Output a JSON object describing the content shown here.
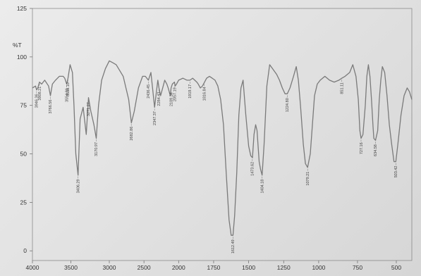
{
  "chart_data": {
    "type": "line",
    "title": "",
    "xlabel": "",
    "ylabel": "%T",
    "xlim": [
      4000,
      400
    ],
    "ylim": [
      -5,
      125
    ],
    "x_ticks": [
      "4000",
      "3500",
      "3000",
      "2500",
      "2000",
      "1750",
      "1500",
      "1250",
      "1000",
      "750",
      "500"
    ],
    "y_ticks": [
      "125",
      "100",
      "75",
      "50",
      "25",
      "0"
    ],
    "grid": false,
    "legend": "none",
    "colors": {
      "line": "#7a7a7a",
      "axis": "#666666",
      "text": "#333333"
    },
    "series": [
      {
        "name": "",
        "x": [
          4000,
          3960,
          3946,
          3930,
          3908,
          3880,
          3840,
          3790,
          3766,
          3740,
          3700,
          3650,
          3600,
          3580,
          3554,
          3538,
          3510,
          3480,
          3460,
          3436,
          3406,
          3380,
          3340,
          3300,
          3271,
          3240,
          3200,
          3170,
          3140,
          3100,
          3050,
          3000,
          2950,
          2900,
          2800,
          2720,
          2682,
          2640,
          2580,
          2520,
          2480,
          2436,
          2400,
          2370,
          2347,
          2320,
          2300,
          2284,
          2260,
          2230,
          2200,
          2170,
          2150,
          2135,
          2120,
          2109,
          2090,
          2060,
          2050,
          2030,
          2000,
          1970,
          1940,
          1919,
          1900,
          1870,
          1860,
          1845,
          1830,
          1800,
          1780,
          1760,
          1740,
          1720,
          1700,
          1680,
          1660,
          1640,
          1625,
          1612,
          1600,
          1585,
          1570,
          1555,
          1540,
          1520,
          1500,
          1485,
          1473,
          1462,
          1450,
          1440,
          1425,
          1415,
          1404,
          1390,
          1370,
          1350,
          1330,
          1300,
          1280,
          1260,
          1240,
          1224,
          1205,
          1180,
          1160,
          1145,
          1130,
          1110,
          1095,
          1079,
          1060,
          1045,
          1030,
          1010,
          990,
          960,
          930,
          900,
          870,
          851,
          830,
          800,
          780,
          760,
          745,
          735,
          727,
          715,
          700,
          690,
          680,
          670,
          660,
          650,
          645,
          634,
          620,
          610,
          600,
          590,
          575,
          560,
          545,
          530,
          515,
          503,
          490,
          470,
          450,
          430,
          415,
          400
        ],
        "values": [
          84,
          85,
          83,
          84,
          87,
          86,
          88,
          85,
          80,
          86,
          88,
          90,
          90,
          89,
          86,
          89,
          96,
          92,
          75,
          50,
          39,
          68,
          74,
          60,
          79,
          72,
          65,
          58,
          75,
          88,
          94,
          98,
          97,
          96,
          90,
          78,
          66,
          72,
          84,
          90,
          90,
          88,
          92,
          82,
          74,
          82,
          88,
          84,
          80,
          84,
          88,
          86,
          84,
          82,
          80,
          84,
          86,
          87,
          85,
          86,
          88,
          89,
          88,
          88,
          89,
          87,
          86,
          84,
          85,
          89,
          90,
          89,
          88,
          85,
          78,
          65,
          40,
          16,
          8,
          8,
          18,
          40,
          70,
          84,
          88,
          70,
          54,
          49,
          48,
          60,
          65,
          62,
          46,
          42,
          39,
          55,
          85,
          96,
          94,
          91,
          88,
          84,
          81,
          81,
          84,
          90,
          95,
          88,
          75,
          55,
          45,
          43,
          50,
          65,
          80,
          86,
          88,
          90,
          88,
          87,
          88,
          89,
          90,
          92,
          96,
          90,
          78,
          62,
          58,
          60,
          75,
          90,
          96,
          90,
          78,
          64,
          58,
          57,
          62,
          78,
          88,
          95,
          92,
          80,
          65,
          55,
          46,
          46,
          55,
          70,
          80,
          84,
          82,
          78
        ]
      }
    ],
    "peak_labels": [
      "3946.36",
      "3908.21",
      "3766.56",
      "3554.81",
      "3538.10",
      "3406.29",
      "3271.27",
      "3170.97",
      "2682.86",
      "2436.45",
      "2347.37",
      "2284.43",
      "2109.34",
      "2057.19",
      "1919.17",
      "1816.84",
      "1612.49",
      "1473.62",
      "1404.18",
      "1224.80",
      "1079.21",
      "851.11",
      "727.16",
      "634.58",
      "503.42"
    ]
  }
}
